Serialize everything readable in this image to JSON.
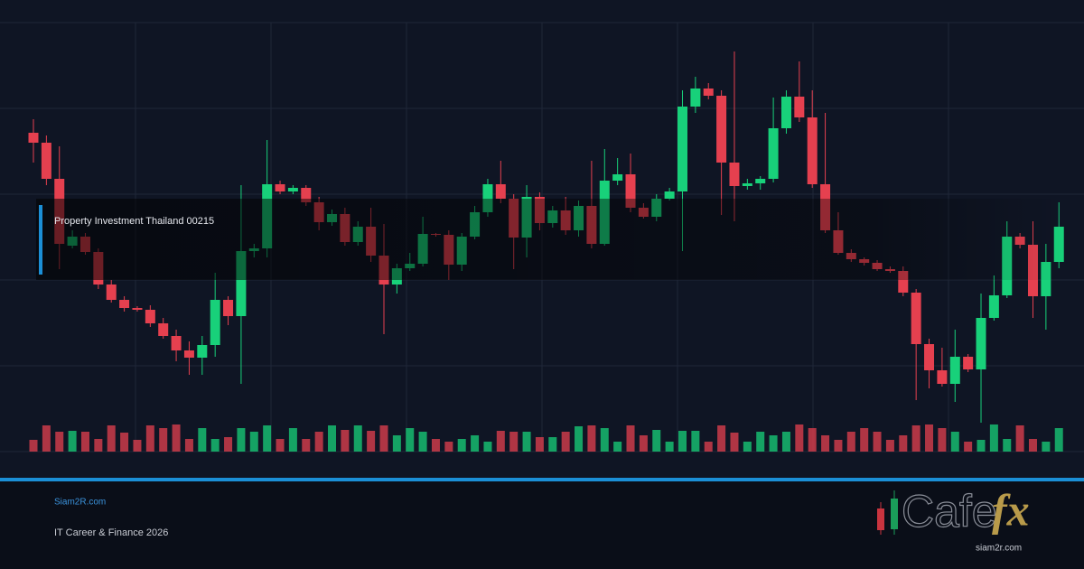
{
  "chart_data": {
    "type": "candlestick",
    "label": "Property Investment Thailand 00215",
    "ylim": [
      0,
      475
    ],
    "yticks": [
      0,
      95,
      190,
      285,
      380,
      475
    ],
    "grid": true,
    "up_color": "#18d17a",
    "down_color": "#e5404f",
    "open": [
      353,
      342,
      302,
      228,
      238,
      221,
      185,
      168,
      159,
      157,
      142,
      128,
      112,
      104,
      118,
      168,
      150,
      222,
      225,
      296,
      288,
      292,
      276,
      254,
      263,
      232,
      249,
      217,
      185,
      203,
      208,
      241,
      240,
      207,
      238,
      265,
      296,
      280,
      237,
      282,
      253,
      267,
      245,
      272,
      230,
      300,
      307,
      270,
      260,
      280,
      288,
      382,
      402,
      394,
      320,
      294,
      297,
      302,
      358,
      393,
      370,
      296,
      245,
      220,
      213,
      209,
      202,
      200,
      176,
      119,
      90,
      75,
      105,
      91,
      148,
      173,
      238,
      229,
      172,
      210
    ],
    "high": [
      368,
      350,
      338,
      245,
      242,
      225,
      190,
      172,
      161,
      162,
      148,
      135,
      122,
      128,
      198,
      172,
      295,
      230,
      345,
      300,
      295,
      295,
      282,
      268,
      270,
      255,
      270,
      252,
      208,
      220,
      260,
      242,
      245,
      242,
      272,
      302,
      322,
      285,
      295,
      287,
      272,
      282,
      278,
      322,
      335,
      325,
      330,
      275,
      285,
      292,
      400,
      415,
      408,
      400,
      443,
      302,
      305,
      392,
      400,
      432,
      400,
      375,
      265,
      224,
      215,
      212,
      205,
      205,
      180,
      125,
      115,
      135,
      108,
      175,
      195,
      255,
      242,
      255,
      230,
      276
    ],
    "low": [
      320,
      295,
      202,
      225,
      218,
      180,
      165,
      155,
      155,
      138,
      125,
      100,
      85,
      85,
      105,
      140,
      75,
      215,
      215,
      285,
      285,
      272,
      245,
      250,
      228,
      228,
      210,
      130,
      175,
      200,
      205,
      238,
      190,
      200,
      235,
      260,
      275,
      202,
      215,
      245,
      248,
      240,
      238,
      225,
      228,
      295,
      265,
      258,
      255,
      278,
      222,
      375,
      390,
      262,
      255,
      290,
      290,
      298,
      352,
      365,
      292,
      242,
      218,
      210,
      206,
      200,
      198,
      172,
      57,
      70,
      72,
      55,
      88,
      32,
      145,
      170,
      225,
      148,
      135,
      203
    ],
    "close": [
      342,
      302,
      230,
      238,
      221,
      185,
      168,
      159,
      157,
      142,
      128,
      112,
      104,
      118,
      168,
      150,
      222,
      225,
      296,
      288,
      292,
      276,
      254,
      263,
      232,
      249,
      217,
      185,
      203,
      208,
      241,
      240,
      207,
      238,
      265,
      296,
      280,
      237,
      282,
      253,
      267,
      245,
      272,
      230,
      300,
      307,
      270,
      260,
      280,
      288,
      382,
      402,
      394,
      320,
      294,
      297,
      302,
      358,
      393,
      370,
      296,
      245,
      220,
      213,
      209,
      202,
      200,
      176,
      119,
      90,
      75,
      105,
      91,
      148,
      173,
      238,
      229,
      172,
      210,
      249
    ],
    "volume": [
      13,
      29,
      22,
      23,
      22,
      14,
      29,
      21,
      13,
      29,
      26,
      30,
      14,
      26,
      14,
      16,
      26,
      22,
      29,
      14,
      26,
      14,
      22,
      29,
      24,
      29,
      23,
      29,
      18,
      26,
      22,
      14,
      11,
      14,
      18,
      11,
      23,
      22,
      22,
      16,
      16,
      22,
      28,
      29,
      26,
      11,
      29,
      18,
      24,
      11,
      23,
      23,
      11,
      29,
      21,
      11,
      22,
      18,
      22,
      30,
      26,
      18,
      13,
      22,
      26,
      22,
      13,
      18,
      29,
      30,
      26,
      22,
      11,
      13,
      30,
      14,
      29,
      14,
      11,
      26
    ],
    "y2lim": [
      0,
      475
    ]
  },
  "footer": {
    "site": "Siam2R.com",
    "caption": "IT Career & Finance 2026"
  },
  "logo": {
    "text": "Cafe",
    "accent": "fx",
    "url": "siam2r.com"
  }
}
